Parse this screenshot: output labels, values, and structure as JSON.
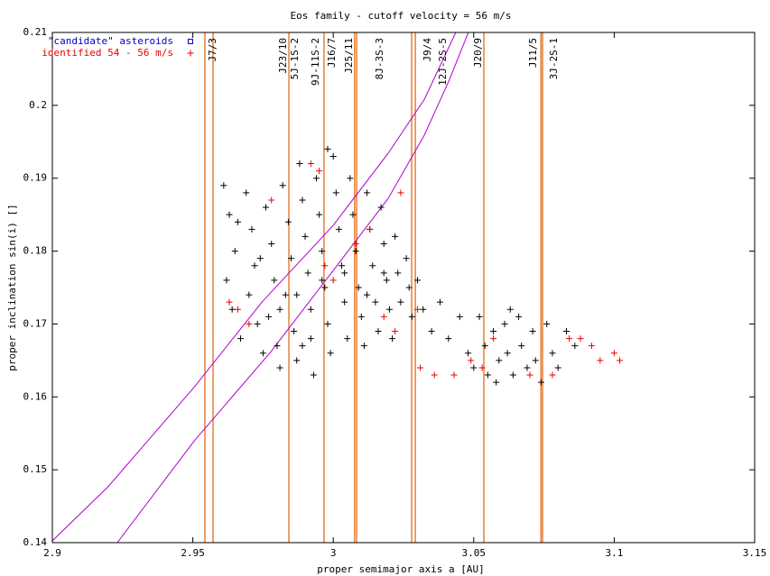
{
  "chart_data": {
    "type": "scatter",
    "title": "Eos family - cutoff velocity = 56 m/s",
    "x_label": "proper semimajor axis a [AU]",
    "y_label": "proper inclination sin(i) []",
    "xlim": [
      2.9,
      3.15
    ],
    "ylim": [
      0.14,
      0.21
    ],
    "xticks": [
      2.9,
      2.95,
      3,
      3.05,
      3.1,
      3.15
    ],
    "yticks": [
      0.14,
      0.15,
      0.16,
      0.17,
      0.18,
      0.19,
      0.2,
      0.21
    ],
    "grid": false,
    "legend": "top-left",
    "series": [
      {
        "color": "#000000",
        "marker": "plus",
        "x": [
          2.961,
          2.963,
          2.965,
          2.962,
          2.964,
          2.967,
          2.969,
          2.971,
          2.972,
          2.97,
          2.973,
          2.975,
          2.976,
          2.978,
          2.979,
          2.977,
          2.98,
          2.981,
          2.982,
          2.984,
          2.985,
          2.983,
          2.986,
          2.987,
          2.988,
          2.989,
          2.99,
          2.991,
          2.992,
          2.989,
          2.993,
          2.994,
          2.995,
          2.996,
          2.997,
          2.998,
          2.999,
          3.0,
          3.001,
          3.002,
          3.003,
          3.004,
          3.005,
          3.006,
          3.007,
          3.008,
          3.009,
          3.01,
          3.011,
          3.012,
          3.013,
          3.014,
          3.015,
          3.016,
          3.017,
          3.018,
          3.019,
          3.02,
          3.021,
          3.022,
          3.023,
          3.024,
          3.026,
          3.027,
          3.028,
          3.03,
          3.032,
          2.966,
          2.974,
          2.987,
          2.996,
          3.004,
          3.012,
          3.018,
          2.998,
          2.981,
          2.992,
          3.035,
          3.038,
          3.041,
          3.045,
          3.048,
          3.052,
          3.054,
          3.055,
          3.057,
          3.059,
          3.061,
          3.062,
          3.064,
          3.066,
          3.067,
          3.069,
          3.071,
          3.072,
          3.074,
          3.076,
          3.078,
          3.08,
          3.083,
          3.086,
          3.063,
          3.058,
          3.05
        ],
        "values": [
          0.189,
          0.185,
          0.18,
          0.176,
          0.172,
          0.168,
          0.188,
          0.183,
          0.178,
          0.174,
          0.17,
          0.166,
          0.186,
          0.181,
          0.176,
          0.171,
          0.167,
          0.164,
          0.189,
          0.184,
          0.179,
          0.174,
          0.169,
          0.165,
          0.192,
          0.187,
          0.182,
          0.177,
          0.172,
          0.167,
          0.163,
          0.19,
          0.185,
          0.18,
          0.175,
          0.17,
          0.166,
          0.193,
          0.188,
          0.183,
          0.178,
          0.173,
          0.168,
          0.19,
          0.185,
          0.18,
          0.175,
          0.171,
          0.167,
          0.188,
          0.183,
          0.178,
          0.173,
          0.169,
          0.186,
          0.181,
          0.176,
          0.172,
          0.168,
          0.182,
          0.177,
          0.173,
          0.179,
          0.175,
          0.171,
          0.176,
          0.172,
          0.184,
          0.179,
          0.174,
          0.176,
          0.177,
          0.174,
          0.177,
          0.194,
          0.172,
          0.168,
          0.169,
          0.173,
          0.168,
          0.171,
          0.166,
          0.171,
          0.167,
          0.163,
          0.169,
          0.165,
          0.17,
          0.166,
          0.163,
          0.171,
          0.167,
          0.164,
          0.169,
          0.165,
          0.162,
          0.17,
          0.166,
          0.164,
          0.169,
          0.167,
          0.172,
          0.162,
          0.164
        ]
      },
      {
        "name": "\"candidate\" asteroids",
        "color": "#0000cc",
        "marker": "square",
        "x": [],
        "values": []
      },
      {
        "name": "identified 54 - 56 m/s",
        "color": "#ee0000",
        "marker": "plus",
        "x": [
          2.963,
          2.966,
          2.97,
          2.978,
          2.992,
          2.995,
          2.997,
          3.0,
          3.008,
          3.013,
          3.018,
          3.022,
          3.024,
          3.03,
          3.031,
          3.036,
          3.043,
          3.049,
          3.053,
          3.057,
          3.07,
          3.078,
          3.084,
          3.088,
          3.092,
          3.095,
          3.1,
          3.102
        ],
        "values": [
          0.173,
          0.172,
          0.17,
          0.187,
          0.192,
          0.191,
          0.178,
          0.176,
          0.181,
          0.183,
          0.171,
          0.169,
          0.188,
          0.172,
          0.164,
          0.163,
          0.163,
          0.165,
          0.164,
          0.168,
          0.163,
          0.163,
          0.168,
          0.168,
          0.167,
          0.165,
          0.166,
          0.165
        ]
      }
    ],
    "resonance_color": "#e06000",
    "resonance_lines": [
      2.9543,
      2.9572,
      2.9842,
      2.9967,
      3.0076,
      3.0083,
      3.0279,
      3.0292,
      3.0536,
      3.0739,
      3.0745
    ],
    "resonances": [
      {
        "label": "J7/3",
        "a": 2.9572
      },
      {
        "label": "J23/10",
        "a": 2.9823
      },
      {
        "label": "5J-1S-2",
        "a": 2.9864
      },
      {
        "label": "9J-11S-2",
        "a": 2.9938
      },
      {
        "label": "J16/7",
        "a": 2.9996
      },
      {
        "label": "J25/11",
        "a": 3.0057
      },
      {
        "label": "8J-3S-3",
        "a": 3.0166
      },
      {
        "label": "J9/4",
        "a": 3.0337
      },
      {
        "label": "12J-2S-5",
        "a": 3.0391
      },
      {
        "label": "J20/9",
        "a": 3.0517
      },
      {
        "label": "J11/5",
        "a": 3.0713
      },
      {
        "label": "3J-2S-1",
        "a": 3.0787
      }
    ],
    "curve_color": "#b000d0",
    "curves": [
      {
        "x": [
          2.9,
          2.9199,
          2.9504,
          2.9746,
          2.9999,
          3.0195,
          3.0324,
          3.0436
        ],
        "values": [
          0.14025,
          0.1477,
          0.1613,
          0.173,
          0.1835,
          0.1934,
          0.2008,
          0.21
        ]
      },
      {
        "x": [
          2.9231,
          2.9504,
          2.9778,
          2.9999,
          3.0195,
          3.0324,
          3.0411,
          3.0481
        ],
        "values": [
          0.14,
          0.1539,
          0.1662,
          0.1773,
          0.1872,
          0.1959,
          0.2033,
          0.21
        ]
      }
    ]
  }
}
